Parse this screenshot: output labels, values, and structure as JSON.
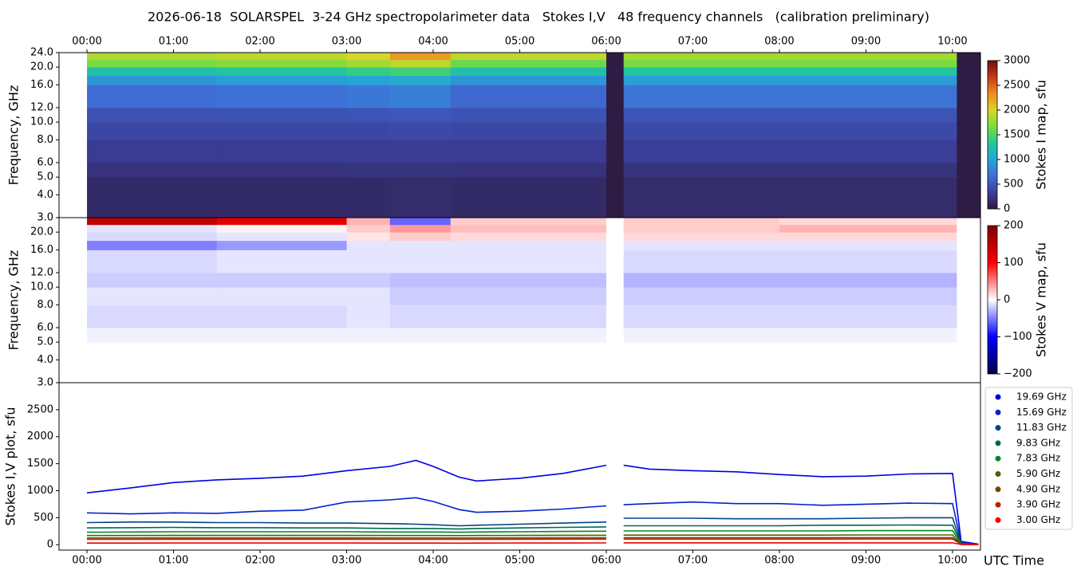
{
  "chart_data": [
    {
      "type": "heatmap",
      "title": "2026-06-18  SOLARSPEL  3-24 GHz spectropolarimeter data   Stokes I,V   48 frequency channels   (calibration preliminary)",
      "ylabel": "Frequency, GHz",
      "xaxis": "top",
      "xlim": [
        -0.323,
        10.323
      ],
      "xticks": [
        {
          "value": 0,
          "label": "00:00"
        },
        {
          "value": 1,
          "label": "01:00"
        },
        {
          "value": 2,
          "label": "02:00"
        },
        {
          "value": 3,
          "label": "03:00"
        },
        {
          "value": 4,
          "label": "04:00"
        },
        {
          "value": 5,
          "label": "05:00"
        },
        {
          "value": 6,
          "label": "06:00"
        },
        {
          "value": 7,
          "label": "07:00"
        },
        {
          "value": 8,
          "label": "08:00"
        },
        {
          "value": 9,
          "label": "09:00"
        },
        {
          "value": 10,
          "label": "10:00"
        }
      ],
      "ylim": [
        3,
        24
      ],
      "log_y": true,
      "yticks": [
        {
          "value": 3,
          "label": "3.0"
        },
        {
          "value": 4,
          "label": "4.0"
        },
        {
          "value": 5,
          "label": "5.0"
        },
        {
          "value": 6,
          "label": "6.0"
        },
        {
          "value": 8,
          "label": "8.0"
        },
        {
          "value": 10,
          "label": "10.0"
        },
        {
          "value": 12,
          "label": "12.0"
        },
        {
          "value": 16,
          "label": "16.0"
        },
        {
          "value": 20,
          "label": "20.0"
        },
        {
          "value": 24,
          "label": "24.0"
        }
      ],
      "x_edges": [
        0,
        1.5,
        3,
        3.5,
        4.2,
        6,
        6.2,
        8,
        10.05,
        10.323
      ],
      "y_edges": [
        3,
        5,
        6,
        8,
        10,
        12,
        16,
        18,
        20,
        22,
        24
      ],
      "z": [
        [
          150,
          150,
          150,
          160,
          150,
          20,
          160,
          160,
          20
        ],
        [
          220,
          220,
          230,
          230,
          220,
          20,
          230,
          230,
          20
        ],
        [
          300,
          300,
          310,
          310,
          300,
          20,
          320,
          320,
          20
        ],
        [
          380,
          380,
          390,
          400,
          380,
          20,
          400,
          400,
          20
        ],
        [
          460,
          470,
          480,
          500,
          470,
          20,
          480,
          480,
          20
        ],
        [
          650,
          680,
          720,
          760,
          620,
          20,
          700,
          700,
          20
        ],
        [
          900,
          950,
          1000,
          1050,
          900,
          20,
          950,
          950,
          20
        ],
        [
          1250,
          1300,
          1400,
          1450,
          1250,
          20,
          1300,
          1300,
          20
        ],
        [
          1650,
          1700,
          1800,
          1900,
          1600,
          20,
          1650,
          1650,
          20
        ],
        [
          1850,
          1900,
          2000,
          2250,
          1900,
          20,
          1800,
          1800,
          20
        ]
      ],
      "colorbar": {
        "label": "Stokes I map, sfu",
        "lim": [
          0,
          3000
        ],
        "ticks": [
          0,
          500,
          1000,
          1500,
          2000,
          2500,
          3000
        ],
        "colors": [
          "#2d1a3e",
          "#3b3f9b",
          "#3f6fd6",
          "#27a5d8",
          "#23c79a",
          "#7ddc3c",
          "#d8d52a",
          "#f08a1c",
          "#c8391a",
          "#6e0f0a"
        ]
      }
    },
    {
      "type": "heatmap",
      "ylabel": "Frequency, GHz",
      "xlim": [
        -0.323,
        10.323
      ],
      "ylim": [
        3,
        24
      ],
      "log_y": true,
      "yticks": [
        {
          "value": 3,
          "label": "3.0"
        },
        {
          "value": 4,
          "label": "4.0"
        },
        {
          "value": 5,
          "label": "5.0"
        },
        {
          "value": 6,
          "label": "6.0"
        },
        {
          "value": 8,
          "label": "8.0"
        },
        {
          "value": 10,
          "label": "10.0"
        },
        {
          "value": 12,
          "label": "12.0"
        },
        {
          "value": 16,
          "label": "16.0"
        },
        {
          "value": 20,
          "label": "20.0"
        }
      ],
      "x_edges": [
        0,
        1.5,
        3,
        3.5,
        4.2,
        6,
        6.2,
        8,
        10.05,
        10.323
      ],
      "y_edges": [
        3,
        5,
        6,
        8,
        10,
        12,
        16,
        18,
        20,
        22,
        24
      ],
      "z": [
        [
          0,
          0,
          0,
          0,
          0,
          0,
          0,
          0,
          0
        ],
        [
          -5,
          -5,
          -5,
          -5,
          -5,
          0,
          -5,
          -5,
          0
        ],
        [
          -15,
          -15,
          -10,
          -15,
          -15,
          0,
          -15,
          -15,
          0
        ],
        [
          -10,
          -10,
          -10,
          -20,
          -20,
          0,
          -20,
          -20,
          0
        ],
        [
          -20,
          -20,
          -20,
          -25,
          -25,
          0,
          -30,
          -30,
          0
        ],
        [
          -15,
          -10,
          -10,
          -10,
          -10,
          0,
          -15,
          -15,
          0
        ],
        [
          -50,
          -40,
          -10,
          -10,
          -10,
          0,
          -10,
          -10,
          0
        ],
        [
          -15,
          -10,
          10,
          20,
          15,
          0,
          15,
          15,
          0
        ],
        [
          -10,
          5,
          20,
          40,
          25,
          0,
          20,
          30,
          0
        ],
        [
          150,
          120,
          30,
          -60,
          20,
          0,
          20,
          15,
          0
        ]
      ],
      "colorbar": {
        "label": "Stokes V map, sfu",
        "lim": [
          -200,
          200
        ],
        "ticks": [
          {
            "value": -200,
            "label": "−200"
          },
          {
            "value": -100,
            "label": "−100"
          },
          0,
          100,
          200
        ],
        "colors": [
          "#00004c",
          "#0000ff",
          "#ffffff",
          "#ff0000",
          "#7f0000"
        ]
      }
    },
    {
      "type": "line",
      "ylabel": "Stokes I,V plot, sfu",
      "xlabel": "UTC Time",
      "xlim": [
        -0.323,
        10.323
      ],
      "xticks": [
        {
          "value": 0,
          "label": "00:00"
        },
        {
          "value": 1,
          "label": "01:00"
        },
        {
          "value": 2,
          "label": "02:00"
        },
        {
          "value": 3,
          "label": "03:00"
        },
        {
          "value": 4,
          "label": "04:00"
        },
        {
          "value": 5,
          "label": "05:00"
        },
        {
          "value": 6,
          "label": "06:00"
        },
        {
          "value": 7,
          "label": "07:00"
        },
        {
          "value": 8,
          "label": "08:00"
        },
        {
          "value": 9,
          "label": "09:00"
        },
        {
          "value": 10,
          "label": "10:00"
        }
      ],
      "ylim": [
        -100,
        3000
      ],
      "yticks": [
        0,
        500,
        1000,
        1500,
        2000,
        2500
      ],
      "legend": "right",
      "x": [
        0,
        0.5,
        1,
        1.5,
        2,
        2.5,
        3,
        3.5,
        3.8,
        4,
        4.3,
        4.5,
        5,
        5.5,
        6,
        6.1,
        6.2,
        6.5,
        7,
        7.5,
        8,
        8.5,
        9,
        9.5,
        10,
        10.1,
        10.3
      ],
      "series": [
        {
          "name": "19.69 GHz",
          "color": "#0000e0",
          "values": [
            960,
            1050,
            1150,
            1200,
            1230,
            1270,
            1370,
            1450,
            1560,
            1450,
            1250,
            1180,
            1230,
            1320,
            1470,
            null,
            1470,
            1400,
            1370,
            1350,
            1300,
            1260,
            1270,
            1310,
            1320,
            60,
            10
          ]
        },
        {
          "name": "15.69 GHz",
          "color": "#0022cc",
          "values": [
            590,
            570,
            590,
            580,
            620,
            640,
            790,
            830,
            870,
            800,
            650,
            600,
            620,
            660,
            720,
            null,
            740,
            760,
            790,
            760,
            760,
            730,
            750,
            770,
            760,
            40,
            5
          ]
        },
        {
          "name": "11.83 GHz",
          "color": "#004488",
          "values": [
            410,
            420,
            420,
            410,
            410,
            400,
            400,
            390,
            380,
            370,
            350,
            360,
            380,
            400,
            420,
            null,
            490,
            490,
            490,
            480,
            480,
            480,
            490,
            500,
            500,
            30,
            0
          ]
        },
        {
          "name": "9.83 GHz",
          "color": "#006655",
          "values": [
            310,
            315,
            320,
            315,
            315,
            310,
            310,
            300,
            300,
            300,
            290,
            300,
            310,
            320,
            330,
            null,
            350,
            350,
            350,
            350,
            350,
            360,
            360,
            365,
            360,
            20,
            0
          ]
        },
        {
          "name": "7.83 GHz",
          "color": "#008822",
          "values": [
            230,
            235,
            240,
            240,
            240,
            240,
            240,
            235,
            235,
            235,
            230,
            235,
            240,
            245,
            250,
            null,
            255,
            255,
            255,
            255,
            255,
            255,
            260,
            260,
            260,
            15,
            0
          ]
        },
        {
          "name": "5.90 GHz",
          "color": "#446600",
          "values": [
            170,
            170,
            172,
            172,
            172,
            172,
            172,
            170,
            170,
            170,
            168,
            170,
            172,
            174,
            175,
            null,
            178,
            178,
            178,
            178,
            178,
            178,
            180,
            180,
            180,
            10,
            0
          ]
        },
        {
          "name": "4.90 GHz",
          "color": "#774400",
          "values": [
            125,
            125,
            126,
            126,
            126,
            126,
            126,
            125,
            125,
            125,
            124,
            125,
            126,
            127,
            128,
            null,
            130,
            130,
            130,
            130,
            130,
            130,
            131,
            131,
            131,
            8,
            0
          ]
        },
        {
          "name": "3.90 GHz",
          "color": "#bb2200",
          "values": [
            100,
            100,
            101,
            101,
            101,
            101,
            101,
            100,
            100,
            100,
            99,
            100,
            101,
            102,
            103,
            null,
            104,
            104,
            104,
            104,
            104,
            104,
            105,
            105,
            105,
            6,
            0
          ]
        },
        {
          "name": "3.00 GHz",
          "color": "#ee0000",
          "values": [
            30,
            30,
            31,
            31,
            31,
            31,
            31,
            30,
            30,
            30,
            29,
            30,
            31,
            32,
            33,
            null,
            34,
            34,
            34,
            34,
            34,
            34,
            35,
            35,
            35,
            3,
            0
          ]
        }
      ]
    }
  ]
}
